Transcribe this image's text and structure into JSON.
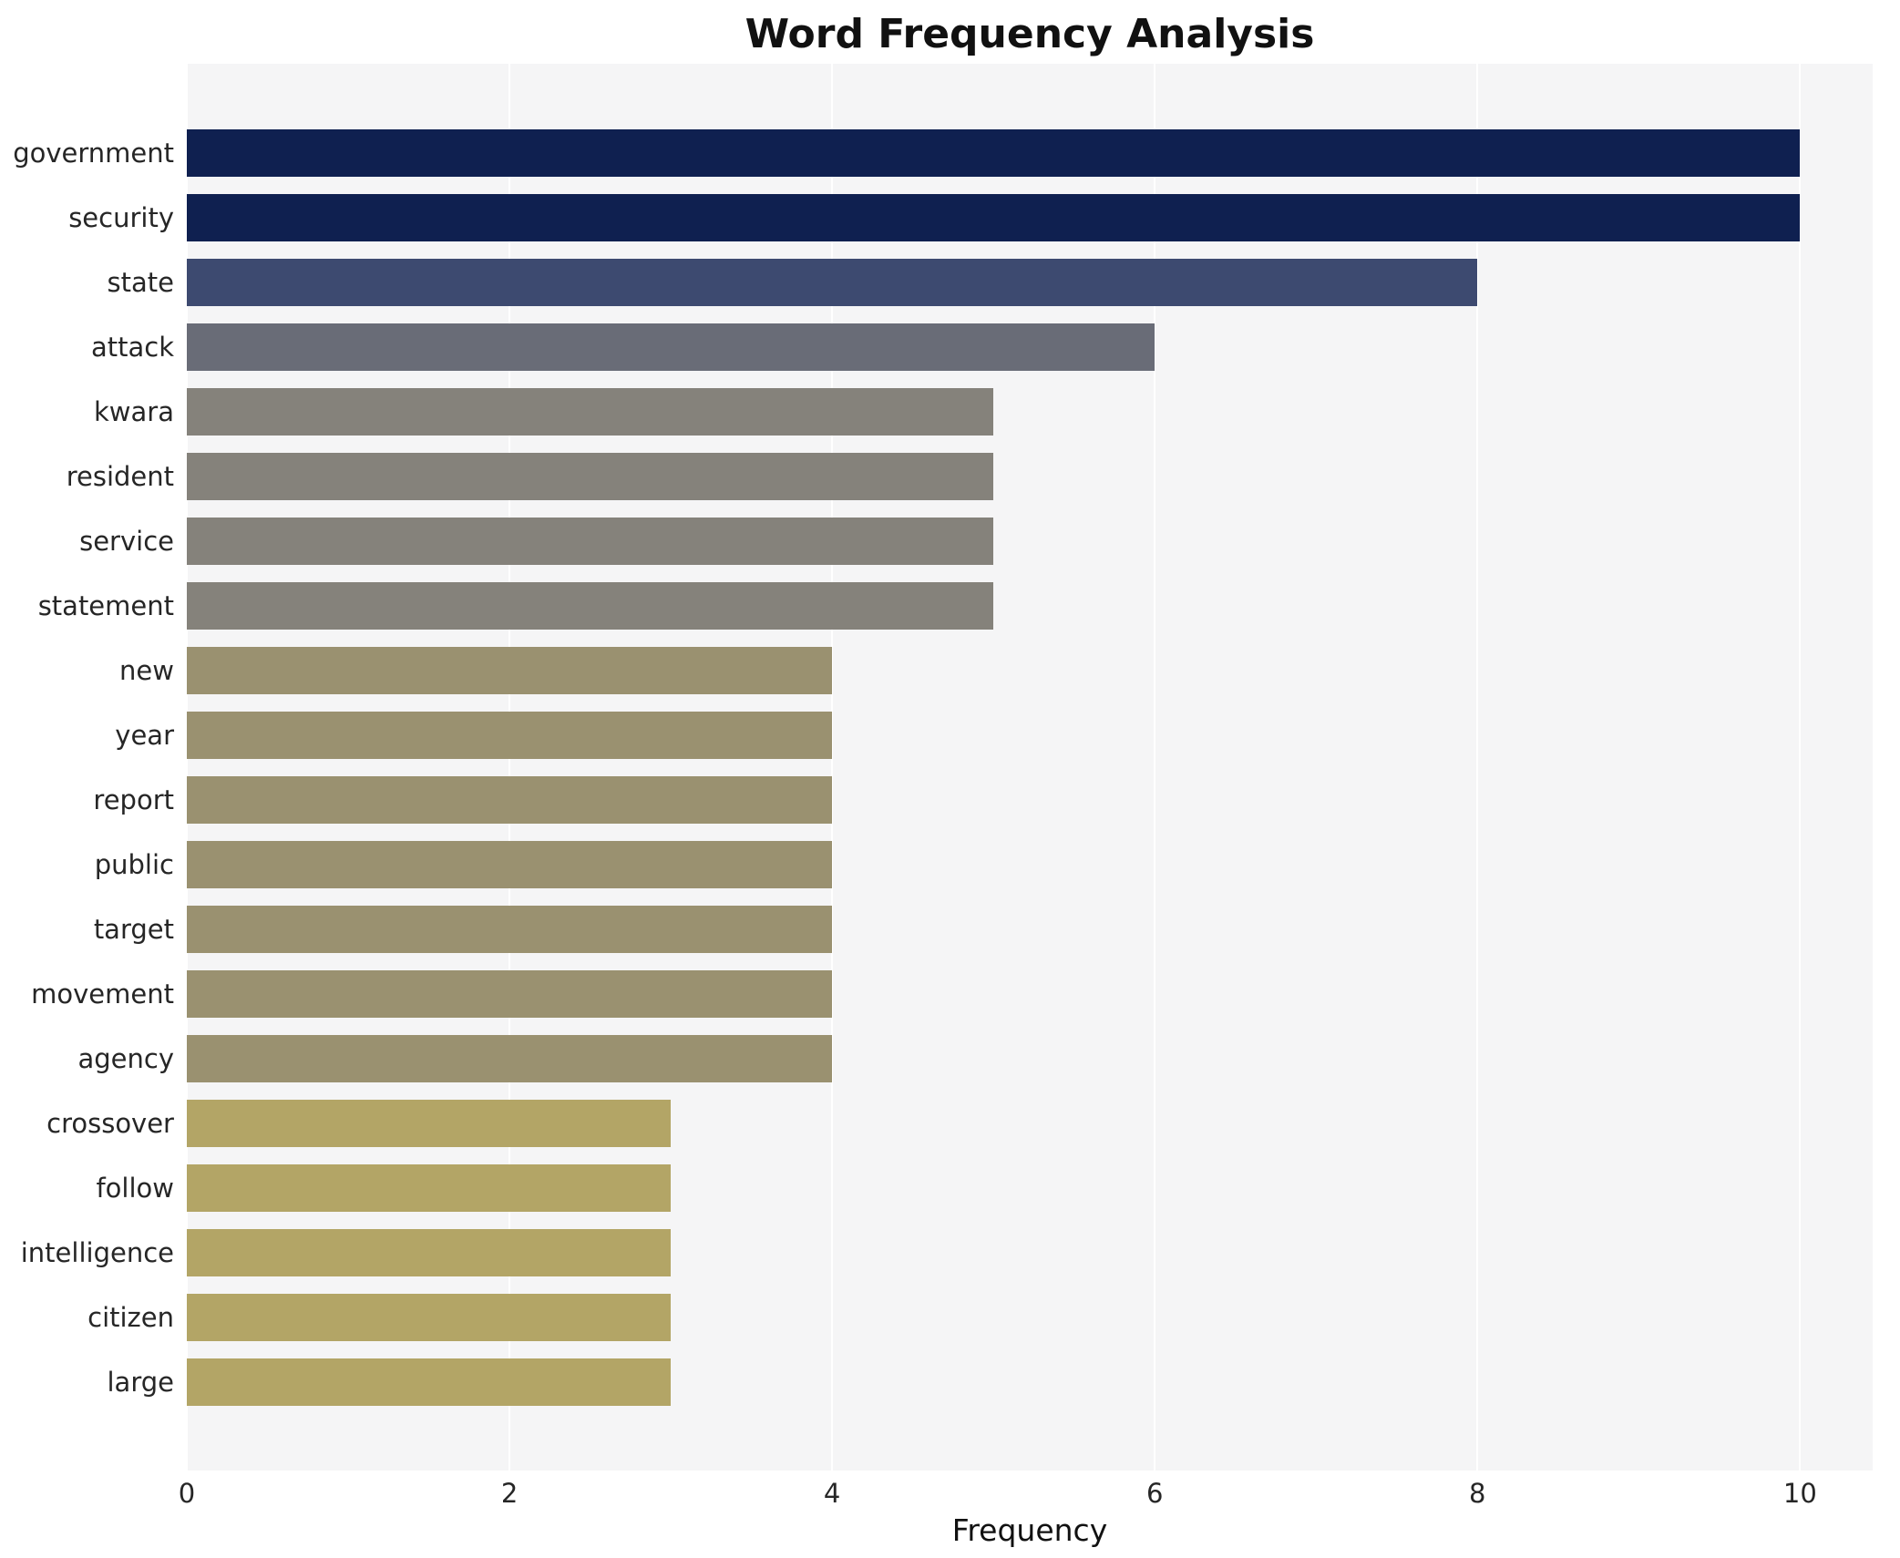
{
  "title": "Word Frequency Analysis",
  "xlabel": "Frequency",
  "chart_data": {
    "type": "bar",
    "orientation": "horizontal",
    "title": "Word Frequency Analysis",
    "xlabel": "Frequency",
    "ylabel": "",
    "categories": [
      "government",
      "security",
      "state",
      "attack",
      "kwara",
      "resident",
      "service",
      "statement",
      "new",
      "year",
      "report",
      "public",
      "target",
      "movement",
      "agency",
      "crossover",
      "follow",
      "intelligence",
      "citizen",
      "large"
    ],
    "values": [
      10,
      10,
      8,
      6,
      5,
      5,
      5,
      5,
      4,
      4,
      4,
      4,
      4,
      4,
      4,
      3,
      3,
      3,
      3,
      3
    ],
    "colors": [
      "#0f2050",
      "#0f2050",
      "#3d4a70",
      "#696c77",
      "#85827b",
      "#85827b",
      "#85827b",
      "#85827b",
      "#9a9170",
      "#9a9170",
      "#9a9170",
      "#9a9170",
      "#9a9170",
      "#9a9170",
      "#9a9170",
      "#b3a566",
      "#b3a566",
      "#b3a566",
      "#b3a566",
      "#b3a566"
    ],
    "xlim": [
      0,
      10.45
    ],
    "xticks": [
      0,
      2,
      4,
      6,
      8,
      10
    ],
    "grid": true,
    "legend": "none",
    "plot_background": "#f5f5f6",
    "page_background": "#ffffff"
  }
}
